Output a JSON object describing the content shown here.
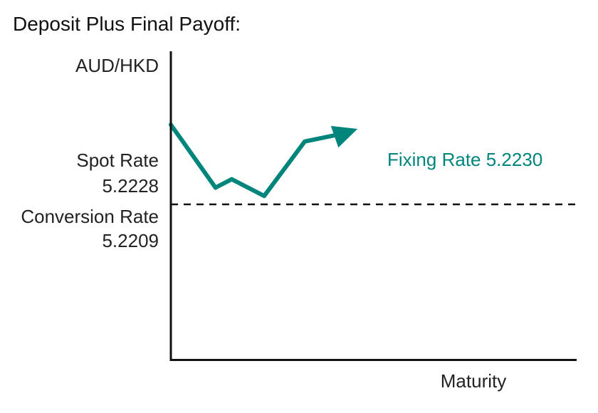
{
  "title": "Deposit Plus Final Payoff:",
  "chart_data": {
    "type": "line",
    "title": "Deposit Plus Final Payoff:",
    "ylabel": "AUD/HKD",
    "xlabel": "Maturity",
    "spot_rate": {
      "label": "Spot Rate",
      "value": "5.2228",
      "value_num": 5.2228
    },
    "conversion_rate": {
      "label": "Conversion Rate",
      "value": "5.2209",
      "value_num": 5.2209,
      "line_style": "dashed"
    },
    "fixing_rate": {
      "label": "Fixing Rate 5.2230",
      "value_num": 5.223
    },
    "series": [
      {
        "color": "#00857c",
        "x": [
          0,
          1.1,
          1.5,
          2.3,
          3.3,
          4.3
        ],
        "values": [
          5.2228,
          5.2213,
          5.2215,
          5.2211,
          5.2224,
          5.2226
        ]
      }
    ],
    "arrow_end": {
      "x": 4.6,
      "y": 5.2227
    },
    "xlim": [
      0,
      10
    ],
    "ylim": [
      5.2172,
      5.22455
    ],
    "grid": false,
    "colors": {
      "series": "#00857c",
      "axis": "#111111",
      "reference_line": "#111111"
    }
  }
}
